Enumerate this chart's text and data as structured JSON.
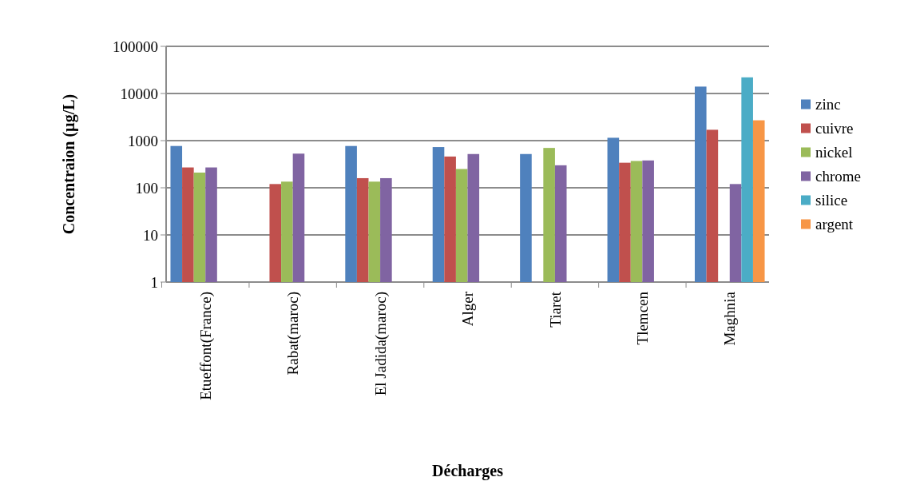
{
  "chart_data": {
    "type": "bar",
    "xlabel": "Décharges",
    "ylabel": "Concentraion (µg/L)",
    "log": true,
    "grid": "y",
    "legend": "right",
    "categories": [
      "Etueffont(France)",
      "Rabat(maroc)",
      "El Jadida(maroc)",
      "Alger",
      "Tiaret",
      "Tlemcen",
      "Maghnia"
    ],
    "ylim": [
      1,
      100000
    ],
    "yticks": [
      1,
      10,
      100,
      1000,
      10000,
      100000
    ],
    "series": [
      {
        "name": "zinc",
        "color": "#4f81bd",
        "values": [
          770,
          null,
          770,
          730,
          520,
          1150,
          14000
        ]
      },
      {
        "name": "cuivre",
        "color": "#c0504d",
        "values": [
          270,
          120,
          160,
          460,
          null,
          340,
          1700
        ]
      },
      {
        "name": "nickel",
        "color": "#9bbb59",
        "values": [
          210,
          135,
          135,
          250,
          700,
          370,
          null
        ]
      },
      {
        "name": "chrome",
        "color": "#8064a2",
        "values": [
          270,
          530,
          160,
          520,
          300,
          380,
          120
        ]
      },
      {
        "name": "silice",
        "color": "#4bacc6",
        "values": [
          null,
          null,
          null,
          null,
          null,
          null,
          22000
        ]
      },
      {
        "name": "argent",
        "color": "#f79646",
        "values": [
          null,
          null,
          null,
          null,
          null,
          null,
          2700
        ]
      }
    ]
  }
}
